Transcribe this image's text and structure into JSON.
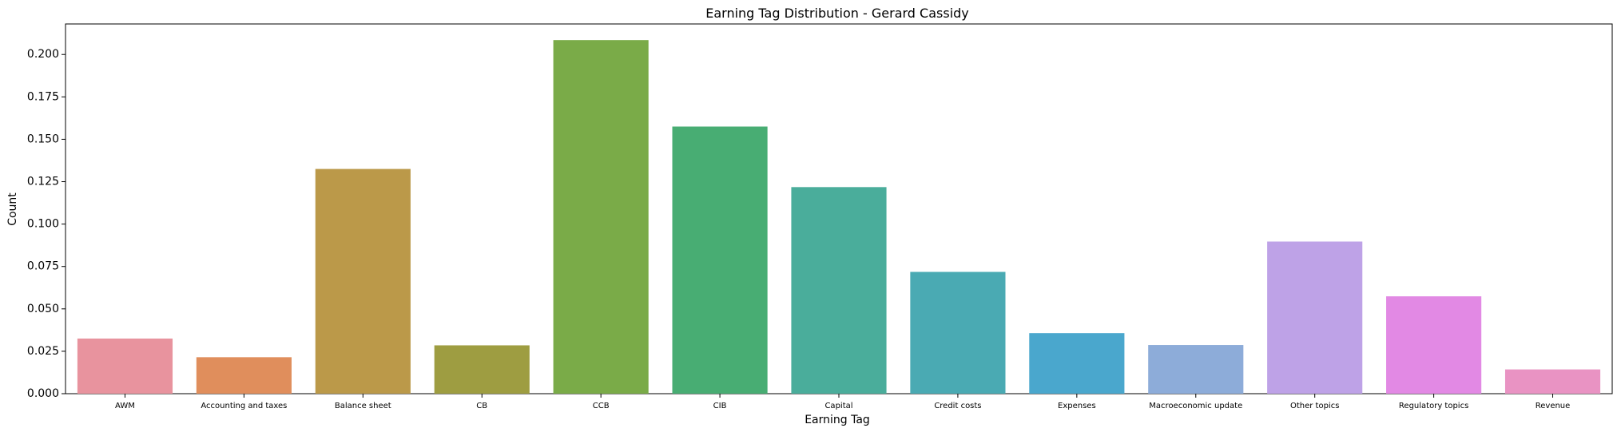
{
  "chart_data": {
    "type": "bar",
    "title": "Earning Tag Distribution - Gerard Cassidy",
    "xlabel": "Earning Tag",
    "ylabel": "Count",
    "ylim": [
      0,
      0.218
    ],
    "yticks": [
      "0.000",
      "0.025",
      "0.050",
      "0.075",
      "0.100",
      "0.125",
      "0.150",
      "0.175",
      "0.200"
    ],
    "ytick_values": [
      0,
      0.025,
      0.05,
      0.075,
      0.1,
      0.125,
      0.15,
      0.175,
      0.2
    ],
    "grid": false,
    "categories": [
      "AWM",
      "Accounting and taxes",
      "Balance sheet",
      "CB",
      "CCB",
      "CIB",
      "Capital",
      "Credit costs",
      "Expenses",
      "Macroeconomic update",
      "Other topics",
      "Regulatory topics",
      "Revenue"
    ],
    "values": [
      0.0325,
      0.0215,
      0.1325,
      0.0285,
      0.2085,
      0.1575,
      0.1218,
      0.0718,
      0.0357,
      0.0287,
      0.0897,
      0.0574,
      0.0143
    ],
    "colors": [
      "#e8939e",
      "#e08e5c",
      "#bb9949",
      "#9e9d41",
      "#7aab48",
      "#48ad73",
      "#4aad9b",
      "#4aaab3",
      "#4aa7cd",
      "#8dacd9",
      "#bea2e7",
      "#e289e4",
      "#e993c3"
    ]
  }
}
